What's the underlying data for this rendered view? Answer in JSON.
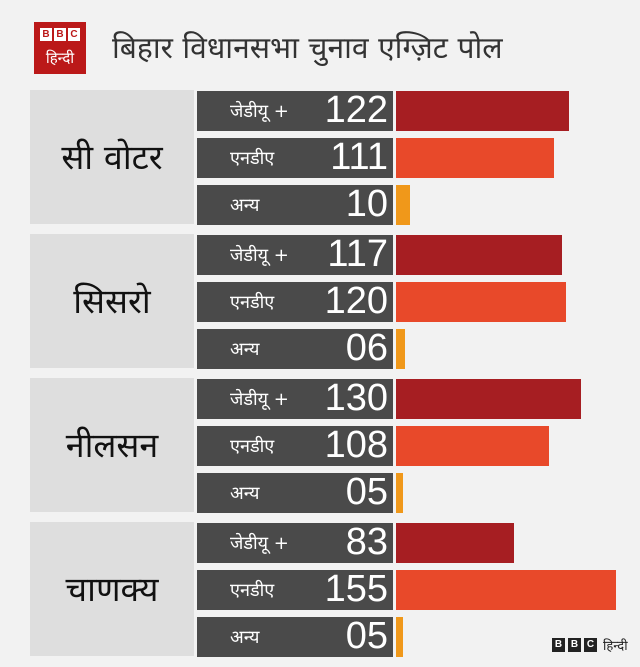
{
  "header": {
    "logo_letters": [
      "B",
      "B",
      "C"
    ],
    "logo_hindi": "हिन्दी",
    "title": "बिहार विधानसभा चुनाव एग्ज़िट पोल"
  },
  "footer": {
    "letters": [
      "B",
      "B",
      "C"
    ],
    "hindi": "हिन्दी"
  },
  "colors": {
    "jdu": "#a61e22",
    "nda": "#e8492a",
    "others": "#f0981a",
    "row_bg": "#4a4a4a",
    "group_bg": "#dedede",
    "brand": "#bb1919"
  },
  "chart_data": {
    "type": "bar",
    "title": "बिहार विधानसभा चुनाव एग्ज़िट पोल",
    "categories": [
      "जेडीयू +",
      "एनडीए",
      "अन्य"
    ],
    "groups": [
      {
        "name": "सी वोटर",
        "values": [
          122,
          111,
          10
        ],
        "labels": [
          "122",
          "111",
          "10"
        ]
      },
      {
        "name": "सिसरो",
        "values": [
          117,
          120,
          6
        ],
        "labels": [
          "117",
          "120",
          "06"
        ]
      },
      {
        "name": "नीलसन",
        "values": [
          130,
          108,
          5
        ],
        "labels": [
          "130",
          "108",
          "05"
        ]
      },
      {
        "name": "चाणक्य",
        "values": [
          83,
          155,
          5
        ],
        "labels": [
          "83",
          "155",
          "05"
        ]
      }
    ],
    "xlim": [
      0,
      155
    ]
  }
}
